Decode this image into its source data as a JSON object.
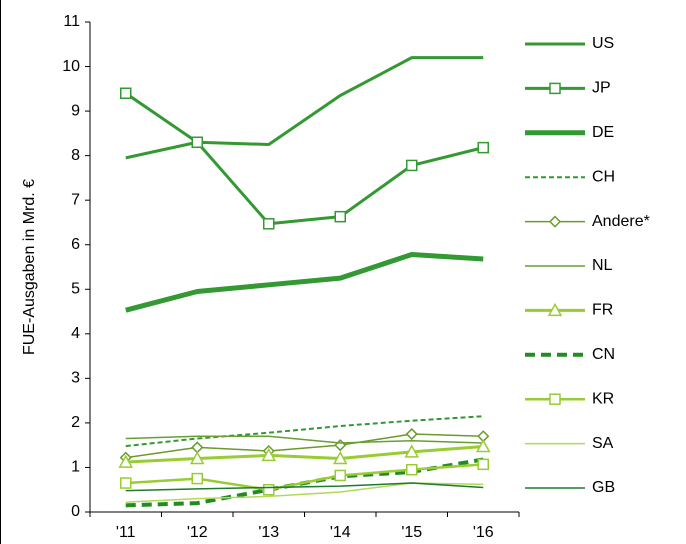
{
  "chart_data": {
    "type": "line",
    "y_label": "FUE-Ausgaben in Mrd. €",
    "categories": [
      "'11",
      "'12",
      "'13",
      "'14",
      "'15",
      "'16"
    ],
    "ylim": [
      0,
      11
    ],
    "yticks": [
      0,
      1,
      2,
      3,
      4,
      5,
      6,
      7,
      8,
      9,
      10,
      11
    ],
    "legend": "right",
    "series": [
      {
        "name": "US",
        "color": "#339933",
        "line_width": 3,
        "dash": false,
        "marker": "none",
        "values": [
          7.95,
          8.3,
          8.25,
          9.35,
          10.2,
          10.2
        ]
      },
      {
        "name": "JP",
        "color": "#339933",
        "line_width": 3,
        "dash": false,
        "marker": "square",
        "values": [
          9.4,
          8.3,
          6.47,
          6.63,
          7.78,
          8.18
        ]
      },
      {
        "name": "DE",
        "color": "#339933",
        "line_width": 5,
        "dash": false,
        "marker": "none",
        "values": [
          4.53,
          4.95,
          5.1,
          5.25,
          5.78,
          5.68
        ]
      },
      {
        "name": "CH",
        "color": "#339933",
        "line_width": 2,
        "dash": true,
        "marker": "none",
        "values": [
          1.48,
          1.65,
          1.78,
          1.93,
          2.05,
          2.15
        ]
      },
      {
        "name": "Andere*",
        "color": "#6b9a2a",
        "line_width": 1.5,
        "dash": false,
        "marker": "diamond",
        "values": [
          1.22,
          1.45,
          1.37,
          1.5,
          1.75,
          1.7
        ]
      },
      {
        "name": "NL",
        "color": "#66a033",
        "line_width": 1.5,
        "dash": false,
        "marker": "none",
        "values": [
          1.65,
          1.7,
          1.7,
          1.55,
          1.6,
          1.55
        ]
      },
      {
        "name": "FR",
        "color": "#99cc33",
        "line_width": 3,
        "dash": false,
        "marker": "triangle",
        "values": [
          1.12,
          1.2,
          1.27,
          1.2,
          1.35,
          1.47
        ]
      },
      {
        "name": "CN",
        "color": "#228b22",
        "line_width": 4,
        "dash": true,
        "marker": "none",
        "values": [
          0.15,
          0.2,
          0.5,
          0.8,
          0.9,
          1.18
        ]
      },
      {
        "name": "KR",
        "color": "#99cc33",
        "line_width": 2.5,
        "dash": false,
        "marker": "square",
        "values": [
          0.65,
          0.75,
          0.5,
          0.82,
          0.95,
          1.07
        ]
      },
      {
        "name": "SA",
        "color": "#b3d957",
        "line_width": 1.5,
        "dash": false,
        "marker": "none",
        "values": [
          0.22,
          0.3,
          0.35,
          0.45,
          0.65,
          0.62
        ]
      },
      {
        "name": "GB",
        "color": "#1e7b2e",
        "line_width": 1.5,
        "dash": false,
        "marker": "none",
        "values": [
          0.48,
          0.52,
          0.55,
          0.58,
          0.65,
          0.55
        ]
      }
    ]
  }
}
